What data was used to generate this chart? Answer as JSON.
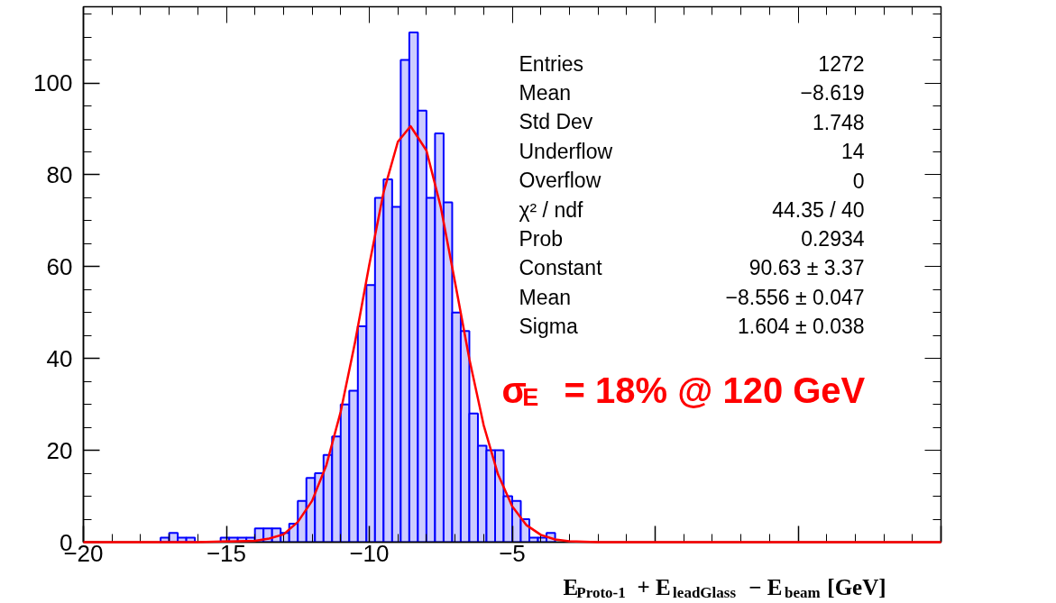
{
  "chart_data": {
    "type": "histogram",
    "xlabel": "E$_{Proto-1}$ + E$_{leadGlass}$ − E$_{beam}$ [GeV]",
    "bins": [
      -20,
      -19.7,
      -19.4,
      -19.1,
      -18.8,
      -18.5,
      -18.2,
      -17.9,
      -17.6,
      -17.3,
      -17,
      -16.7,
      -16.4,
      -16.1,
      -15.8,
      -15.5,
      -15.2,
      -14.9,
      -14.6,
      -14.3,
      -14,
      -13.7,
      -13.4,
      -13.1,
      -12.8,
      -12.5,
      -12.2,
      -11.9,
      -11.6,
      -11.3,
      -11,
      -10.7,
      -10.4,
      -10.1,
      -9.8,
      -9.5,
      -9.2,
      -8.9,
      -8.6,
      -8.3,
      -8,
      -7.7,
      -7.4,
      -7.1,
      -6.8,
      -6.5,
      -6.2,
      -5.9,
      -5.6,
      -5.3,
      -5,
      -4.7,
      -4.4,
      -4.1,
      -3.8,
      -3.5,
      -3.2,
      -2.9,
      -2.6,
      -2.3,
      -2,
      -1.7,
      -1.4,
      -1.1,
      -0.8,
      -0.5,
      -0.2,
      0.1,
      0.4,
      0.7,
      1,
      1.3,
      1.6,
      1.9,
      2.2,
      2.5,
      2.8,
      3.1,
      3.4,
      3.7,
      4,
      4.3,
      4.6,
      4.9,
      5.2,
      5.5,
      5.8,
      6.1,
      6.4,
      6.7,
      7,
      7.3,
      7.6,
      7.9,
      8.2,
      8.5,
      8.8,
      9.1,
      9.4,
      9.7,
      10
    ],
    "values": [
      0,
      0,
      0,
      0,
      0,
      0,
      0,
      0,
      0,
      1,
      2,
      1,
      1,
      0,
      0,
      0,
      1,
      1,
      1,
      1,
      3,
      3,
      3,
      2,
      4,
      9,
      14,
      15,
      19,
      23,
      30,
      33,
      47,
      56,
      75,
      79,
      73,
      105,
      111,
      94,
      75,
      89,
      74,
      50,
      46,
      28,
      21,
      20,
      20,
      10,
      9,
      5,
      1,
      1,
      2,
      0,
      0,
      0,
      0,
      0,
      0,
      0,
      0,
      0,
      0,
      0,
      0,
      0,
      0,
      0,
      0,
      0,
      0,
      0,
      0,
      0,
      0,
      0,
      0,
      0,
      0,
      0,
      0,
      0,
      0,
      0,
      0,
      0,
      0,
      0,
      0,
      0,
      0,
      0,
      0,
      0,
      0,
      0,
      0,
      0
    ],
    "color": "#ccccff",
    "series": [
      {
        "type": "line",
        "color": "#ff0000",
        "x": [
          -20,
          -16,
          -14,
          -13.5,
          -13,
          -12.5,
          -12,
          -11.5,
          -11,
          -10.5,
          -10,
          -9.5,
          -9,
          -8.556,
          -8,
          -7.5,
          -7,
          -6.5,
          -6,
          -5.5,
          -5,
          -4.5,
          -4,
          -3.5,
          -3,
          -2,
          10
        ],
        "values": [
          0,
          0,
          0.3,
          0.8,
          1.7,
          4.4,
          9.0,
          16.8,
          28.4,
          43.5,
          60.4,
          76.2,
          87.2,
          90.6,
          85.3,
          73.0,
          56.6,
          39.9,
          25.5,
          14.8,
          7.8,
          3.7,
          1.6,
          0.6,
          0.2,
          0,
          0
        ]
      }
    ],
    "xlim": [
      -20,
      10
    ],
    "xticks": [
      {
        "value": -20,
        "label": "−20"
      },
      {
        "value": -15,
        "label": "−15"
      },
      {
        "value": -10,
        "label": "−10"
      },
      {
        "value": -5,
        "label": "−5"
      },
      {
        "value": 0,
        "label": null
      },
      {
        "value": 5,
        "label": null
      },
      {
        "value": 10,
        "label": null
      }
    ],
    "ylim": [
      0,
      116.6
    ],
    "yticks": [
      0,
      20,
      40,
      60,
      80,
      100
    ],
    "grid": false,
    "annotations": [
      "Entries",
      "1272",
      "Mean",
      "−8.619",
      "Std Dev",
      "1.748",
      "Underflow",
      "14",
      "Overflow",
      "0",
      "χ² / ndf",
      "44.35 / 40",
      "Prob",
      "0.2934",
      "Constant",
      "90.63 ± 3.37",
      "Mean",
      "−8.556 ± 0.047",
      "Sigma",
      "1.604 ± 0.038",
      "σ$_{E}$ = 18% @ 120 GeV"
    ]
  }
}
